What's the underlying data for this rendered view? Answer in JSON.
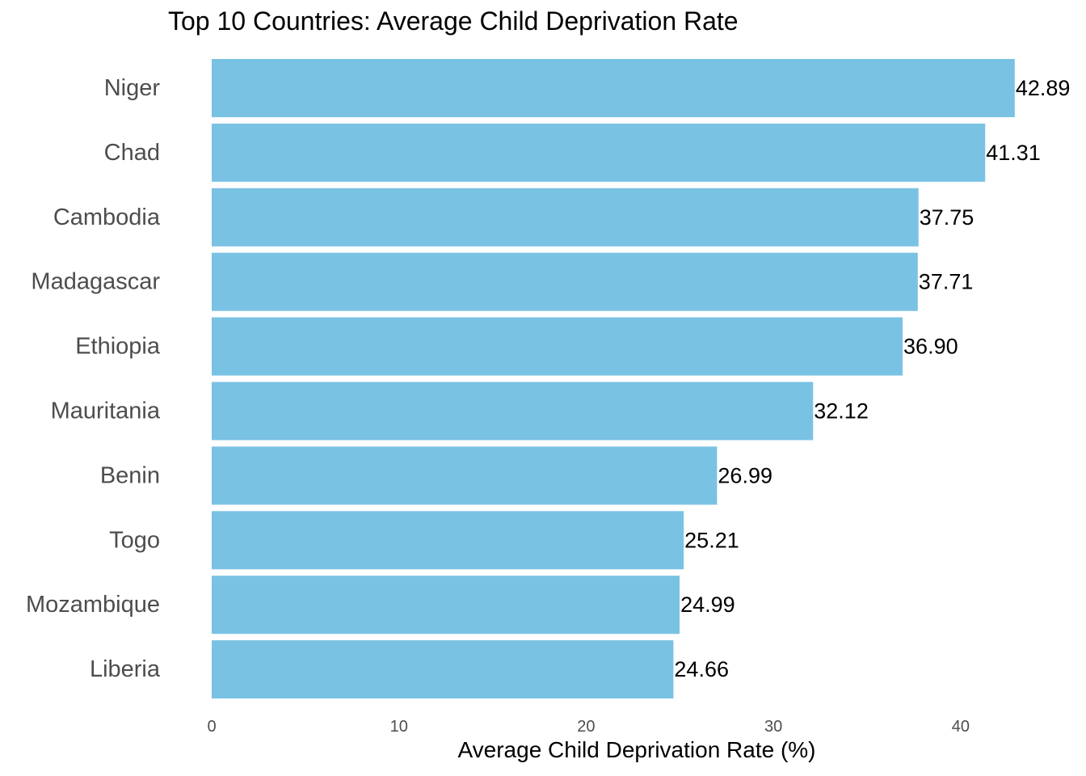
{
  "chart_data": {
    "type": "bar",
    "orientation": "horizontal",
    "title": "Top 10 Countries: Average Child Deprivation Rate",
    "xlabel": "Average Child Deprivation Rate (%)",
    "ylabel": "",
    "categories": [
      "Niger",
      "Chad",
      "Cambodia",
      "Madagascar",
      "Ethiopia",
      "Mauritania",
      "Benin",
      "Togo",
      "Mozambique",
      "Liberia"
    ],
    "values": [
      42.89,
      41.31,
      37.75,
      37.71,
      36.9,
      32.12,
      26.99,
      25.21,
      24.99,
      24.66
    ],
    "value_labels": [
      "42.89",
      "41.31",
      "37.75",
      "37.71",
      "36.90",
      "32.12",
      "26.99",
      "25.21",
      "24.99",
      "24.66"
    ],
    "xlim": [
      0,
      45.4
    ],
    "xticks": [
      0,
      10,
      20,
      30,
      40
    ],
    "xtick_labels": [
      "0",
      "10",
      "20",
      "30",
      "40"
    ],
    "grid": false,
    "legend": "none",
    "bar_color": "#7AC2E4"
  }
}
